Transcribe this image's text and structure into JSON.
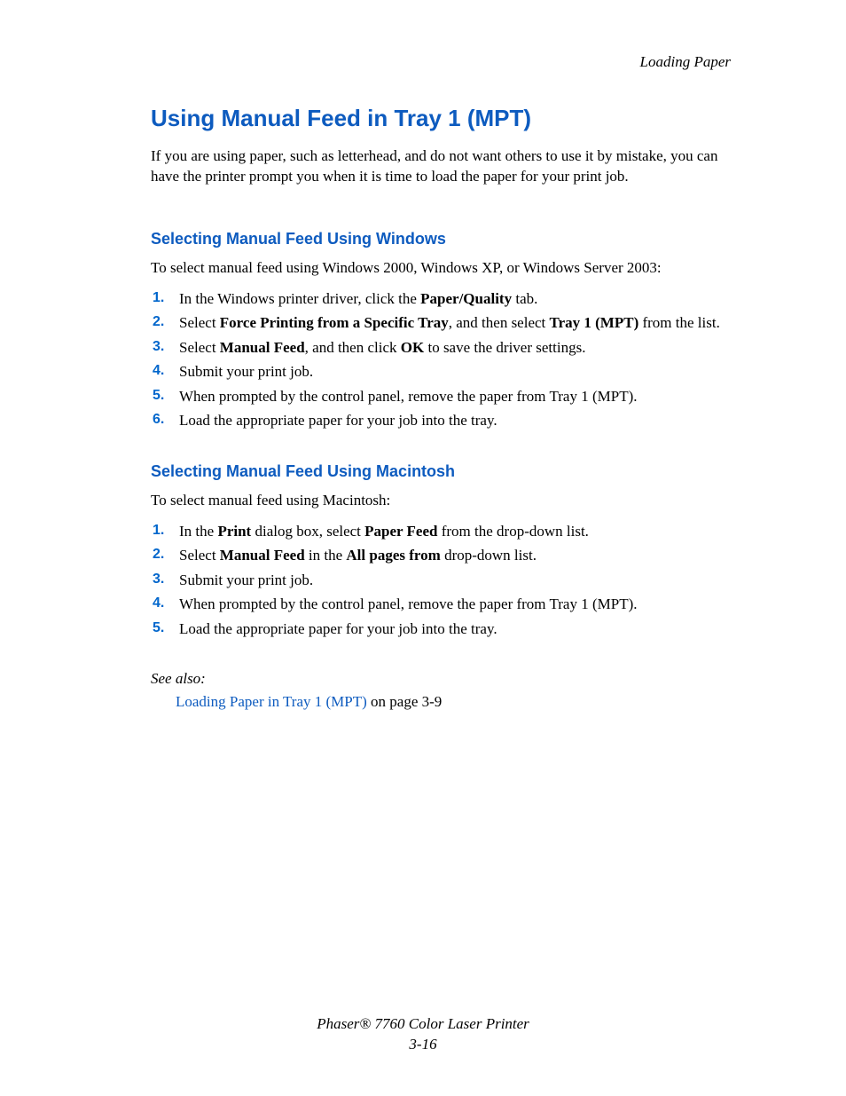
{
  "colors": {
    "title_blue": "#0d5bbf",
    "number_blue": "#0066cc",
    "link_blue": "#0d5bbf",
    "body_text": "#000000"
  },
  "header": {
    "section_label": "Loading Paper"
  },
  "title": "Using Manual Feed in Tray 1 (MPT)",
  "intro": "If you are using paper, such as letterhead, and do not want others to use it by mistake, you can have the printer prompt you when it is time to load the paper for your print job.",
  "windows": {
    "heading": "Selecting Manual Feed Using Windows",
    "lead": "To select manual feed using Windows 2000, Windows XP, or Windows Server 2003:",
    "steps": [
      {
        "pre": "In the Windows printer driver, click the ",
        "b1": "Paper/Quality",
        "post": " tab."
      },
      {
        "pre": "Select ",
        "b1": "Force Printing from a Specific Tray",
        "mid": ", and then select ",
        "b2": "Tray 1 (MPT)",
        "post": " from the list."
      },
      {
        "pre": "Select ",
        "b1": "Manual Feed",
        "mid": ", and then click ",
        "b2": "OK",
        "post": " to save the driver settings."
      },
      {
        "pre": "Submit your print job."
      },
      {
        "pre": "When prompted by the control panel, remove the paper from Tray 1 (MPT)."
      },
      {
        "pre": "Load the appropriate paper for your job into the tray."
      }
    ]
  },
  "mac": {
    "heading": "Selecting Manual Feed Using Macintosh",
    "lead": "To select manual feed using Macintosh:",
    "steps": [
      {
        "pre": "In the ",
        "b1": "Print",
        "mid": " dialog box, select ",
        "b2": "Paper Feed",
        "post": " from the drop-down list."
      },
      {
        "pre": "Select ",
        "b1": "Manual Feed",
        "mid": " in the ",
        "b2": "All pages from",
        "post": " drop-down list."
      },
      {
        "pre": "Submit your print job."
      },
      {
        "pre": "When prompted by the control panel, remove the paper from Tray 1 (MPT)."
      },
      {
        "pre": "Load the appropriate paper for your job into the tray."
      }
    ]
  },
  "see_also": {
    "label": "See also:",
    "link_text": "Loading Paper in Tray 1 (MPT)",
    "tail": " on page 3-9"
  },
  "footer": {
    "product": "Phaser® 7760 Color Laser Printer",
    "page_number": "3-16"
  }
}
